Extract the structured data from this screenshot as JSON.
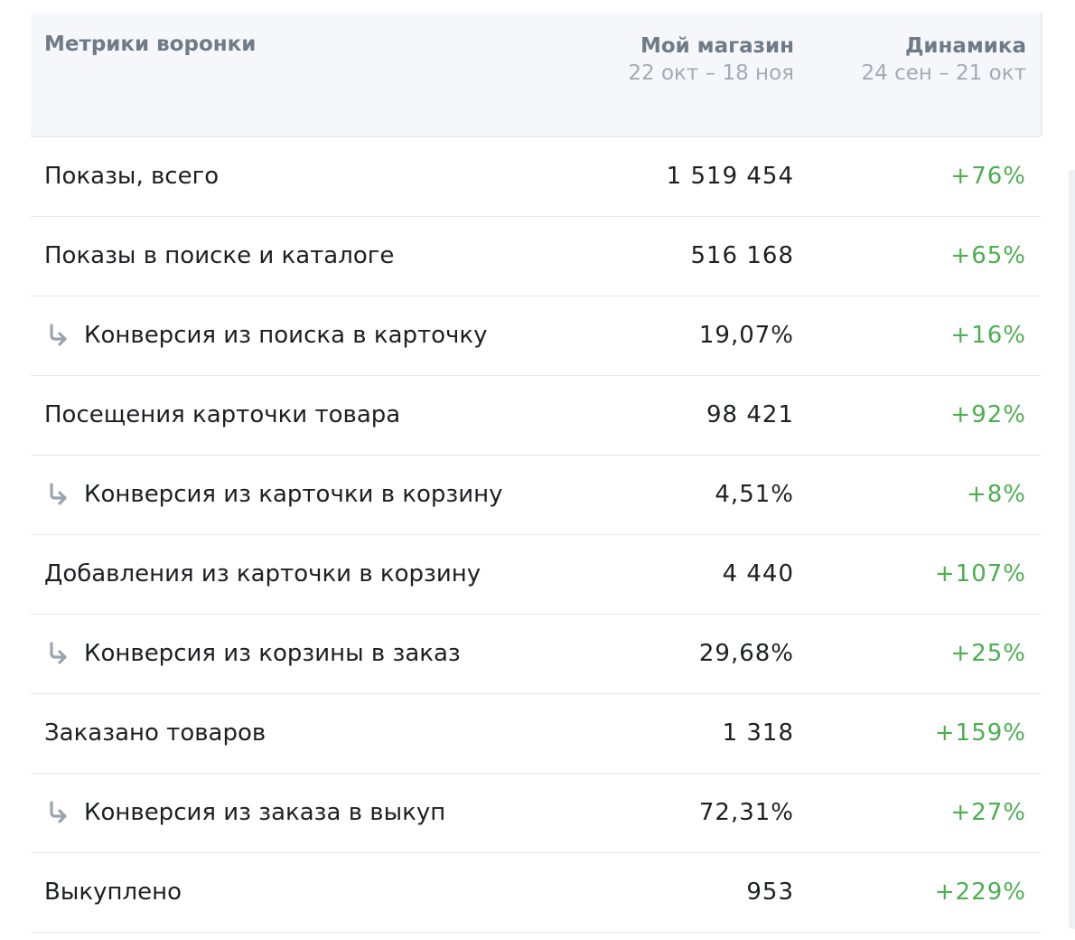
{
  "header": {
    "metric_title": "Метрики воронки",
    "shop_title": "Мой магазин",
    "shop_period": "22 окт – 18 ноя",
    "dynamics_title": "Динамика",
    "dynamics_period": "24 сен – 21 окт"
  },
  "colors": {
    "positive": "#4caf50",
    "header_bg": "#f5f7fa",
    "text": "#1d1f22",
    "muted": "#707b88"
  },
  "rows": [
    {
      "label": "Показы, всего",
      "value": "1 519 454",
      "dynamics": "+76%",
      "is_conversion": false
    },
    {
      "label": "Показы в поиске и каталоге",
      "value": "516 168",
      "dynamics": "+65%",
      "is_conversion": false
    },
    {
      "label": "Конверсия из поиска в карточку",
      "value": "19,07%",
      "dynamics": "+16%",
      "is_conversion": true,
      "icon": "arrow-turn-down-right-icon"
    },
    {
      "label": "Посещения карточки товара",
      "value": "98 421",
      "dynamics": "+92%",
      "is_conversion": false
    },
    {
      "label": "Конверсия из карточки в корзину",
      "value": "4,51%",
      "dynamics": "+8%",
      "is_conversion": true,
      "icon": "arrow-turn-down-right-icon"
    },
    {
      "label": "Добавления из карточки в корзину",
      "value": "4 440",
      "dynamics": "+107%",
      "is_conversion": false
    },
    {
      "label": "Конверсия из корзины в заказ",
      "value": "29,68%",
      "dynamics": "+25%",
      "is_conversion": true,
      "icon": "arrow-turn-down-right-icon"
    },
    {
      "label": "Заказано товаров",
      "value": "1 318",
      "dynamics": "+159%",
      "is_conversion": false
    },
    {
      "label": "Конверсия из заказа в выкуп",
      "value": "72,31%",
      "dynamics": "+27%",
      "is_conversion": true,
      "icon": "arrow-turn-down-right-icon"
    },
    {
      "label": "Выкуплено",
      "value": "953",
      "dynamics": "+229%",
      "is_conversion": false
    }
  ]
}
